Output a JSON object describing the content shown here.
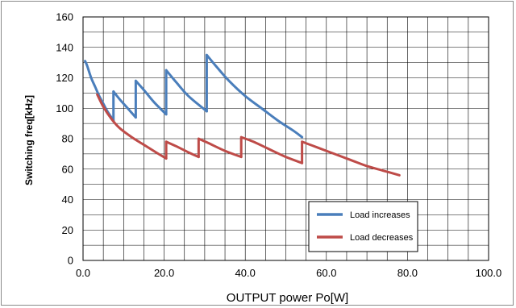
{
  "chart_data": {
    "type": "line",
    "title": "",
    "xlabel": "OUTPUT power Po[W]",
    "ylabel": "Switching  freq[kHz]",
    "xlim": [
      0,
      100
    ],
    "ylim": [
      0,
      160
    ],
    "x_ticks": [
      0,
      20,
      40,
      60,
      80,
      100
    ],
    "x_tick_labels": [
      "0.0",
      "20.0",
      "40.0",
      "60.0",
      "80.0",
      "100.0"
    ],
    "y_ticks": [
      0,
      20,
      40,
      60,
      80,
      100,
      120,
      140,
      160
    ],
    "y_tick_labels": [
      "0",
      "20",
      "40",
      "60",
      "80",
      "100",
      "120",
      "140",
      "160"
    ],
    "x_minor_grid_step": 5,
    "y_grid_step": 10,
    "grid": true,
    "legend_position": "bottom-right",
    "series": [
      {
        "name": "Load increases",
        "color": "#4a7ebb",
        "segments": [
          [
            [
              0.5,
              131
            ],
            [
              1,
              128
            ],
            [
              2,
              120
            ],
            [
              3,
              114
            ],
            [
              4,
              108
            ],
            [
              5,
              103
            ],
            [
              6,
              98
            ],
            [
              7.5,
              92
            ]
          ],
          [
            [
              7.5,
              111
            ],
            [
              9,
              106
            ],
            [
              11,
              100
            ],
            [
              13,
              94
            ]
          ],
          [
            [
              13,
              118
            ],
            [
              15,
              112
            ],
            [
              17.5,
              104
            ],
            [
              20.5,
              96
            ]
          ],
          [
            [
              20.5,
              125
            ],
            [
              23,
              117
            ],
            [
              26,
              108
            ],
            [
              30.5,
              98
            ]
          ],
          [
            [
              30.5,
              135
            ],
            [
              33,
              127
            ],
            [
              36,
              118
            ],
            [
              40,
              108
            ],
            [
              44,
              100
            ],
            [
              48,
              92
            ],
            [
              52,
              85
            ],
            [
              54,
              81
            ]
          ]
        ]
      },
      {
        "name": "Load decreases",
        "color": "#be4b48",
        "segments": [
          [
            [
              3.5,
              109
            ],
            [
              5,
              101
            ],
            [
              7,
              93
            ],
            [
              9,
              87
            ],
            [
              12,
              81
            ],
            [
              15,
              76
            ],
            [
              18,
              71
            ],
            [
              20.5,
              67
            ]
          ],
          [
            [
              20.5,
              78
            ],
            [
              23,
              75
            ],
            [
              26,
              71
            ],
            [
              28.5,
              68
            ]
          ],
          [
            [
              28.5,
              80
            ],
            [
              31,
              77
            ],
            [
              35,
              72
            ],
            [
              39,
              68
            ]
          ],
          [
            [
              39,
              81
            ],
            [
              42,
              78
            ],
            [
              46,
              73
            ],
            [
              50,
              68
            ],
            [
              54,
              64
            ]
          ],
          [
            [
              54,
              78
            ],
            [
              58,
              74
            ],
            [
              62,
              70
            ],
            [
              66,
              66
            ],
            [
              70,
              62
            ],
            [
              74,
              59
            ],
            [
              78,
              56
            ]
          ]
        ]
      }
    ]
  }
}
